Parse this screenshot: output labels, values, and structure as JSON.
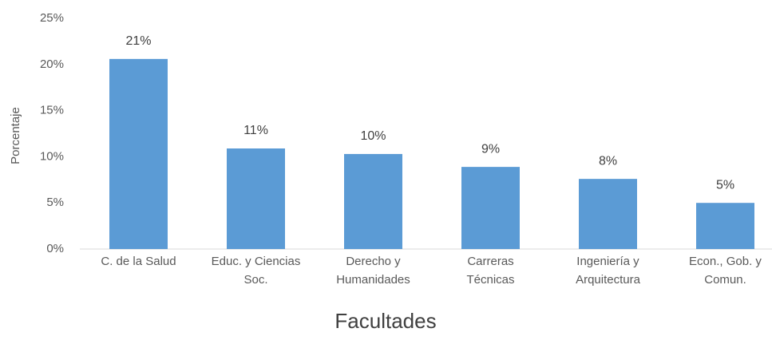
{
  "chart_data": {
    "type": "bar",
    "y_axis_label": "Porcentaje",
    "x_axis_label": "Facultades",
    "categories": [
      [
        "C. de la Salud"
      ],
      [
        "Educ. y Ciencias",
        "Soc."
      ],
      [
        "Derecho y",
        "Humanidades"
      ],
      [
        "Carreras",
        "Técnicas"
      ],
      [
        "Ingeniería y",
        "Arquitectura"
      ],
      [
        "Econ., Gob. y",
        "Comun."
      ]
    ],
    "values": [
      20.6,
      10.9,
      10.3,
      8.9,
      7.6,
      5.0
    ],
    "value_labels": [
      "21%",
      "11%",
      "10%",
      "9%",
      "8%",
      "5%"
    ],
    "color": "#5b9bd5",
    "ylim": [
      0,
      25
    ],
    "yticks": [
      {
        "value": 0,
        "label": "0%"
      },
      {
        "value": 5,
        "label": "5%"
      },
      {
        "value": 10,
        "label": "10%"
      },
      {
        "value": 15,
        "label": "15%"
      },
      {
        "value": 20,
        "label": "20%"
      },
      {
        "value": 25,
        "label": "25%"
      }
    ],
    "grid": false
  }
}
